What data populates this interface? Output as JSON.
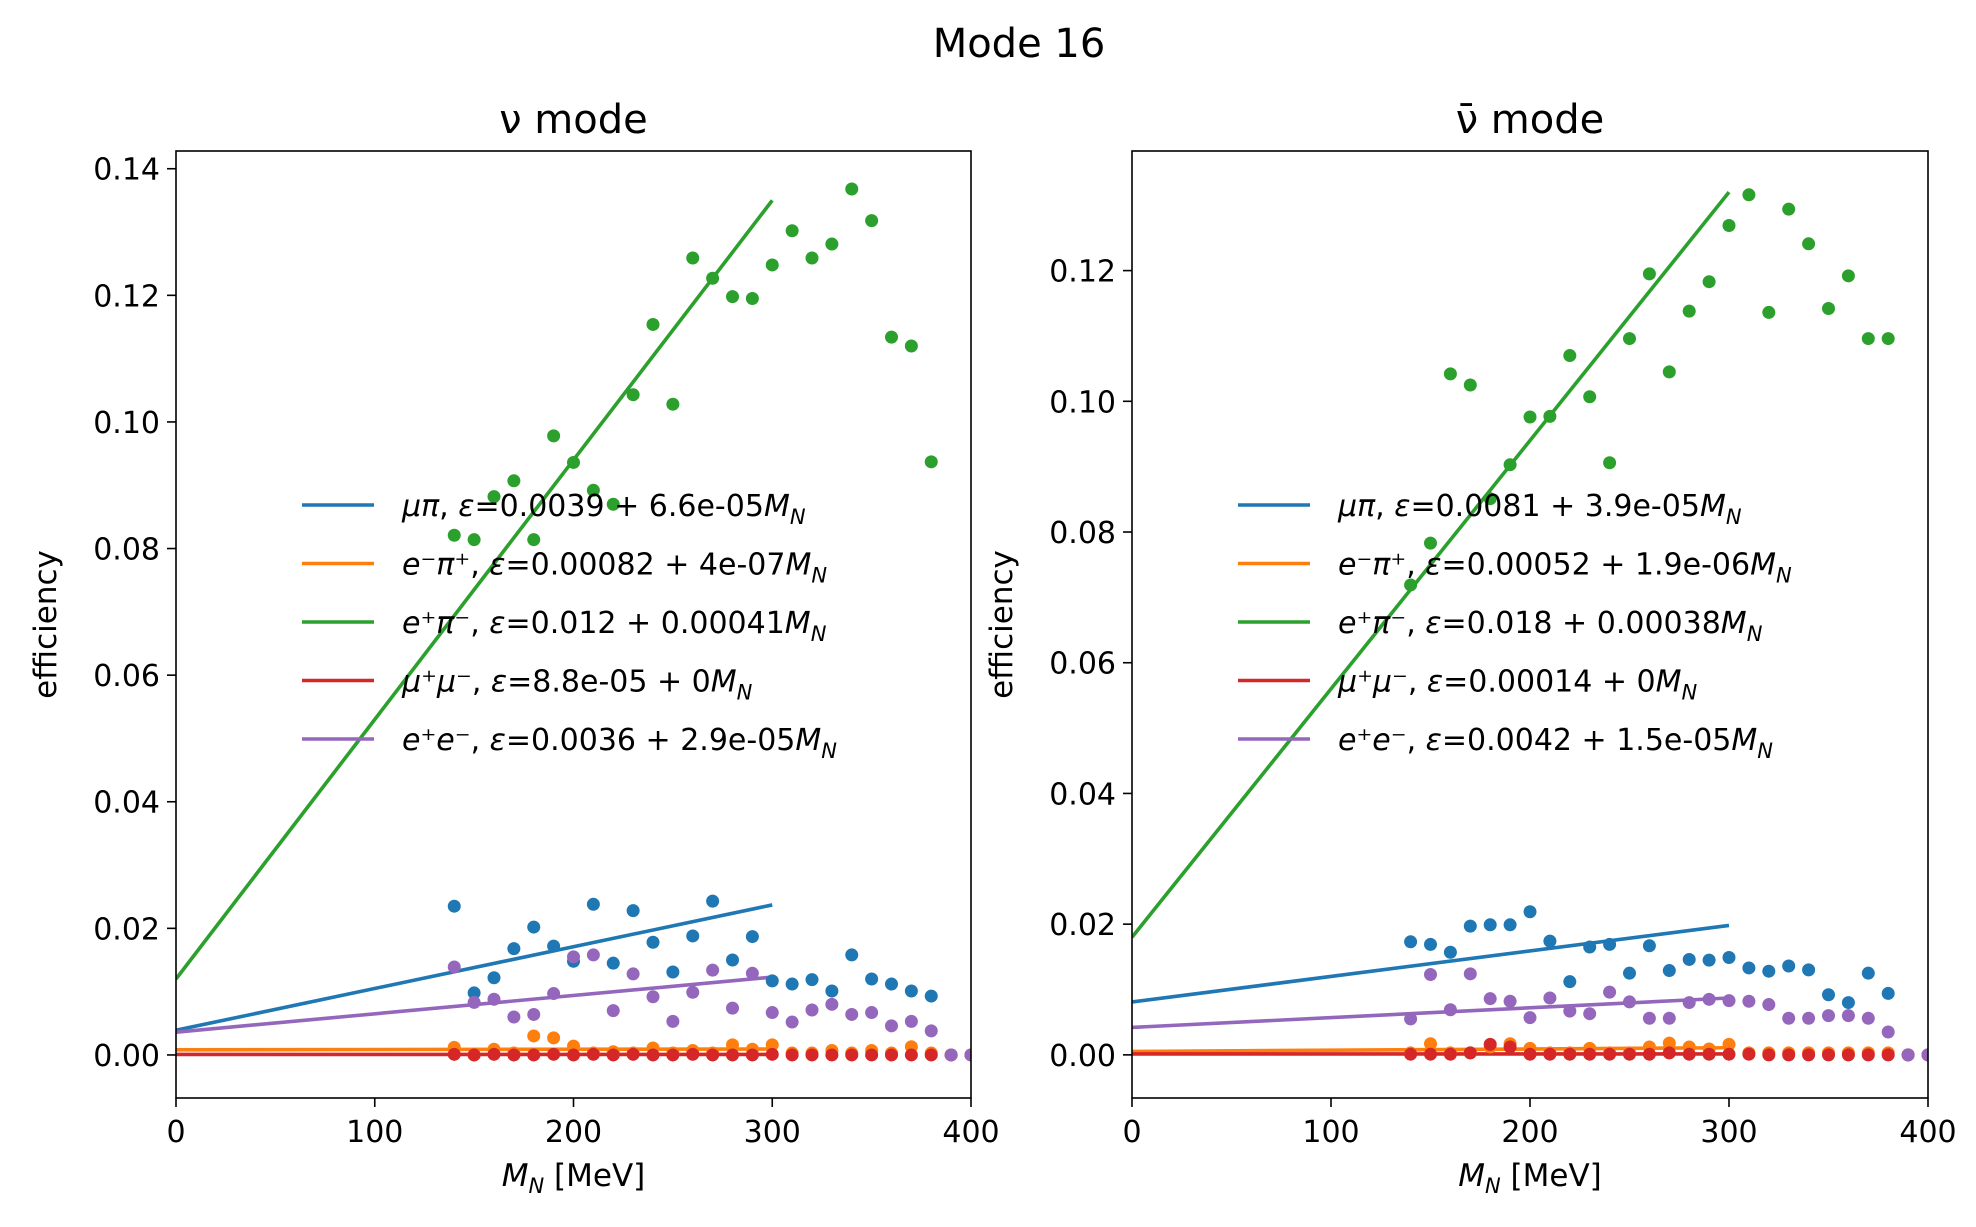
{
  "figure_title": "Mode 16",
  "colors": {
    "mupi": "#1f77b4",
    "eminus_piplus": "#ff7f0e",
    "eplus_piminus": "#2ca02c",
    "mumu": "#d62728",
    "ee": "#9467bd"
  },
  "chart_data": [
    {
      "type": "scatter",
      "title": "ν mode",
      "xlabel": "M_N [MeV]",
      "ylabel": "efficiency",
      "xlim": [
        0,
        400
      ],
      "ylim": [
        -0.0068,
        0.1428
      ],
      "xticks": [
        "0",
        "100",
        "200",
        "300",
        "400"
      ],
      "yticks": [
        "0.00",
        "0.02",
        "0.04",
        "0.06",
        "0.08",
        "0.10",
        "0.12",
        "0.14"
      ],
      "grid": false,
      "legend_position": "center-right",
      "series": [
        {
          "key": "mupi",
          "name": "μπ, ε=0.0039 + 6.6e-05M_N",
          "fit": {
            "intercept": 0.0039,
            "slope": 6.6e-05,
            "x_range": [
              0,
              300
            ]
          },
          "x": [
            140,
            150,
            160,
            170,
            180,
            190,
            200,
            210,
            220,
            230,
            240,
            250,
            260,
            270,
            280,
            290,
            300,
            310,
            320,
            330,
            340,
            350,
            360,
            370,
            380
          ],
          "y": [
            0.0235,
            0.0098,
            0.0122,
            0.0168,
            0.0202,
            0.0172,
            0.0148,
            0.0238,
            0.0145,
            0.0228,
            0.0178,
            0.0131,
            0.0188,
            0.0243,
            0.015,
            0.0187,
            0.0117,
            0.0112,
            0.0119,
            0.0101,
            0.0158,
            0.012,
            0.0112,
            0.0101,
            0.0093
          ]
        },
        {
          "key": "eminus_piplus",
          "name": "e⁻π⁺, ε=0.00082 + 4e-07M_N",
          "fit": {
            "intercept": 0.00082,
            "slope": 4e-07,
            "x_range": [
              0,
              300
            ]
          },
          "x": [
            140,
            150,
            160,
            170,
            180,
            190,
            200,
            210,
            220,
            230,
            240,
            250,
            260,
            270,
            280,
            290,
            300,
            310,
            320,
            330,
            340,
            350,
            360,
            370,
            380,
            390,
            400
          ],
          "y": [
            0.0012,
            0.0,
            0.0009,
            0.0003,
            0.003,
            0.0027,
            0.0014,
            0.0003,
            0.0005,
            0.0003,
            0.0011,
            0.0003,
            0.0007,
            0.0003,
            0.0016,
            0.0009,
            0.0016,
            0.0003,
            0.0003,
            0.0007,
            0.0003,
            0.0007,
            0.0003,
            0.0013,
            0.0003,
            0.0,
            0.0
          ]
        },
        {
          "key": "eplus_piminus",
          "name": "e⁺π⁻, ε=0.012 + 0.00041M_N",
          "fit": {
            "intercept": 0.012,
            "slope": 0.00041,
            "x_range": [
              0,
              300
            ]
          },
          "x": [
            140,
            150,
            160,
            170,
            180,
            190,
            200,
            210,
            220,
            230,
            240,
            250,
            260,
            270,
            280,
            290,
            300,
            310,
            320,
            330,
            340,
            350,
            360,
            370,
            380
          ],
          "y": [
            0.0821,
            0.0814,
            0.0882,
            0.0907,
            0.0814,
            0.0978,
            0.0936,
            0.0892,
            0.087,
            0.1043,
            0.1154,
            0.1028,
            0.1259,
            0.1227,
            0.1198,
            0.1195,
            0.1248,
            0.1302,
            0.1259,
            0.1281,
            0.1368,
            0.1318,
            0.1134,
            0.112,
            0.0937
          ]
        },
        {
          "key": "mumu",
          "name": "μ⁺μ⁻, ε=8.8e-05 + 0M_N",
          "fit": {
            "intercept": 8.8e-05,
            "slope": 0,
            "x_range": [
              0,
              300
            ]
          },
          "x": [
            140,
            150,
            160,
            170,
            180,
            190,
            200,
            210,
            220,
            230,
            240,
            250,
            260,
            270,
            280,
            290,
            300,
            310,
            320,
            330,
            340,
            350,
            360,
            370,
            380,
            390,
            400
          ],
          "y": [
            0.0001,
            0.0,
            0.0001,
            0.0,
            0.0,
            0.0001,
            0.0,
            0.0001,
            0.0,
            0.0001,
            0.0,
            0.0,
            0.0001,
            0.0,
            0.0,
            0.0,
            0.0001,
            0.0,
            0.0,
            0.0,
            0.0,
            0.0,
            0.0,
            0.0,
            0.0,
            0.0,
            0.0
          ]
        },
        {
          "key": "ee",
          "name": "e⁺e⁻, ε=0.0036 + 2.9e-05M_N",
          "fit": {
            "intercept": 0.0036,
            "slope": 2.9e-05,
            "x_range": [
              0,
              300
            ]
          },
          "x": [
            140,
            150,
            160,
            170,
            180,
            190,
            200,
            210,
            220,
            230,
            240,
            250,
            260,
            270,
            280,
            290,
            300,
            310,
            320,
            330,
            340,
            350,
            360,
            370,
            380,
            390,
            400
          ],
          "y": [
            0.0139,
            0.0083,
            0.0088,
            0.006,
            0.0064,
            0.0097,
            0.0155,
            0.0158,
            0.007,
            0.0128,
            0.0092,
            0.0053,
            0.0099,
            0.0134,
            0.0074,
            0.0129,
            0.0067,
            0.0052,
            0.0071,
            0.008,
            0.0064,
            0.0067,
            0.0046,
            0.0053,
            0.0038,
            0.0,
            0.0
          ]
        }
      ]
    },
    {
      "type": "scatter",
      "title": "ν̄ mode",
      "xlabel": "M_N [MeV]",
      "ylabel": "efficiency",
      "xlim": [
        0,
        400
      ],
      "ylim": [
        -0.0066,
        0.1383
      ],
      "xticks": [
        "0",
        "100",
        "200",
        "300",
        "400"
      ],
      "yticks": [
        "0.00",
        "0.02",
        "0.04",
        "0.06",
        "0.08",
        "0.10",
        "0.12"
      ],
      "grid": false,
      "legend_position": "center-right",
      "series": [
        {
          "key": "mupi",
          "name": "μπ, ε=0.0081 + 3.9e-05M_N",
          "fit": {
            "intercept": 0.0081,
            "slope": 3.9e-05,
            "x_range": [
              0,
              300
            ]
          },
          "x": [
            140,
            150,
            160,
            170,
            180,
            190,
            200,
            210,
            220,
            230,
            240,
            250,
            260,
            270,
            280,
            290,
            300,
            310,
            320,
            330,
            340,
            350,
            360,
            370,
            380
          ],
          "y": [
            0.0173,
            0.0169,
            0.0157,
            0.0197,
            0.0199,
            0.0199,
            0.0219,
            0.0174,
            0.0112,
            0.0165,
            0.0169,
            0.0125,
            0.0167,
            0.0129,
            0.0146,
            0.0145,
            0.0149,
            0.0133,
            0.0128,
            0.0136,
            0.013,
            0.0092,
            0.008,
            0.0125,
            0.0094
          ]
        },
        {
          "key": "eminus_piplus",
          "name": "e⁻π⁺, ε=0.00052 + 1.9e-06M_N",
          "fit": {
            "intercept": 0.00052,
            "slope": 1.9e-06,
            "x_range": [
              0,
              300
            ]
          },
          "x": [
            140,
            150,
            160,
            170,
            180,
            190,
            200,
            210,
            220,
            230,
            240,
            250,
            260,
            270,
            280,
            290,
            300,
            310,
            320,
            330,
            340,
            350,
            360,
            370,
            380,
            390,
            400
          ],
          "y": [
            0.0003,
            0.0017,
            0.0003,
            0.0003,
            0.0012,
            0.0017,
            0.001,
            0.0003,
            0.0003,
            0.001,
            0.0003,
            0.0003,
            0.0012,
            0.0018,
            0.0012,
            0.0009,
            0.0016,
            0.0003,
            0.0003,
            0.0003,
            0.0003,
            0.0003,
            0.0003,
            0.0003,
            0.0003,
            0.0,
            0.0
          ]
        },
        {
          "key": "eplus_piminus",
          "name": "e⁺π⁻, ε=0.018 + 0.00038M_N",
          "fit": {
            "intercept": 0.018,
            "slope": 0.00038,
            "x_range": [
              0,
              300
            ]
          },
          "x": [
            140,
            150,
            160,
            170,
            180,
            190,
            200,
            210,
            220,
            230,
            240,
            250,
            260,
            270,
            280,
            290,
            300,
            310,
            320,
            330,
            340,
            350,
            360,
            370,
            380
          ],
          "y": [
            0.0719,
            0.0783,
            0.1042,
            0.1025,
            0.0851,
            0.0903,
            0.0976,
            0.0977,
            0.107,
            0.1007,
            0.0906,
            0.1096,
            0.1195,
            0.1045,
            0.1138,
            0.1183,
            0.1269,
            0.1316,
            0.1136,
            0.1294,
            0.1241,
            0.1142,
            0.1192,
            0.1096,
            0.1096
          ]
        },
        {
          "key": "mumu",
          "name": "μ⁺μ⁻, ε=0.00014 + 0M_N",
          "fit": {
            "intercept": 0.00014,
            "slope": 0,
            "x_range": [
              0,
              300
            ]
          },
          "x": [
            140,
            150,
            160,
            170,
            180,
            190,
            200,
            210,
            220,
            230,
            240,
            250,
            260,
            270,
            280,
            290,
            300,
            310,
            320,
            330,
            340,
            350,
            360,
            370,
            380,
            390,
            400
          ],
          "y": [
            0.0001,
            0.0001,
            0.0001,
            0.0003,
            0.0016,
            0.0012,
            0.0001,
            0.0001,
            0.0001,
            0.0001,
            0.0001,
            0.0001,
            0.0001,
            0.0003,
            0.0001,
            0.0001,
            0.0001,
            0.0001,
            0.0,
            0.0,
            0.0,
            0.0,
            0.0,
            0.0,
            0.0,
            0.0,
            0.0
          ]
        },
        {
          "key": "ee",
          "name": "e⁺e⁻, ε=0.0042 + 1.5e-05M_N",
          "fit": {
            "intercept": 0.0042,
            "slope": 1.5e-05,
            "x_range": [
              0,
              300
            ]
          },
          "x": [
            140,
            150,
            160,
            170,
            180,
            190,
            200,
            210,
            220,
            230,
            240,
            250,
            260,
            270,
            280,
            290,
            300,
            310,
            320,
            330,
            340,
            350,
            360,
            370,
            380,
            390,
            400
          ],
          "y": [
            0.0055,
            0.0123,
            0.0069,
            0.0124,
            0.0086,
            0.0082,
            0.0057,
            0.0087,
            0.0067,
            0.0063,
            0.0096,
            0.0081,
            0.0056,
            0.0056,
            0.008,
            0.0085,
            0.0083,
            0.0082,
            0.0077,
            0.0056,
            0.0056,
            0.006,
            0.006,
            0.0056,
            0.0035,
            0.0,
            0.0
          ]
        }
      ]
    }
  ]
}
